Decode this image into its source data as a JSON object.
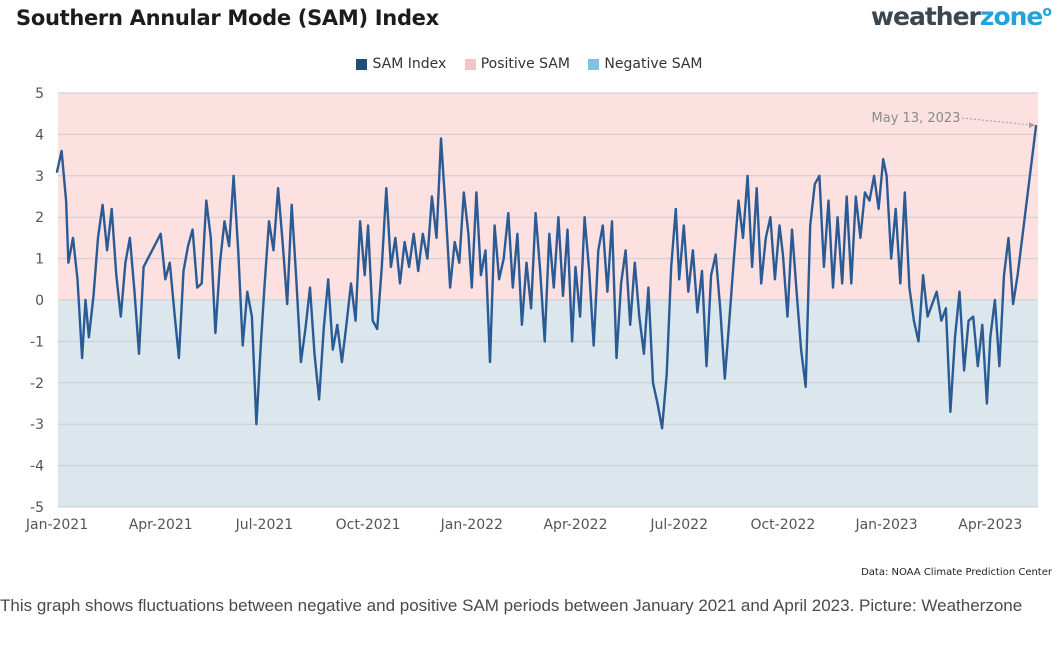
{
  "header": {
    "title": "Southern Annular Mode (SAM) Index",
    "logo_main": "weather",
    "logo_accent": "zone",
    "logo_mark": "o"
  },
  "legend": [
    {
      "label": "SAM Index",
      "color": "#1f4e79"
    },
    {
      "label": "Positive SAM",
      "color": "#f4c4c4"
    },
    {
      "label": "Negative SAM",
      "color": "#7ec3e0"
    }
  ],
  "source": "Data: NOAA Climate Prediction Center",
  "caption": "This graph shows fluctuations between negative and positive SAM periods between January 2021 and April 2023. Picture: Weatherzone",
  "chart_data": {
    "type": "line",
    "title": "Southern Annular Mode (SAM) Index",
    "xlabel": "",
    "ylabel": "",
    "ylim": [
      -5,
      5
    ],
    "y_ticks": [
      "5",
      "4",
      "3",
      "2",
      "1",
      "0",
      "-1",
      "-2",
      "-3",
      "-4",
      "-5"
    ],
    "x_tick_labels": [
      "Jan-2021",
      "Apr-2021",
      "Jul-2021",
      "Oct-2021",
      "Jan-2022",
      "Apr-2022",
      "Jul-2022",
      "Oct-2022",
      "Jan-2023",
      "Apr-2023"
    ],
    "x_range": [
      "Jan-2021",
      "May 13, 2023"
    ],
    "grid": true,
    "legend_position": "top-center",
    "positive_band_color": "#fde0e0",
    "negative_band_color": "#dce6ed",
    "annotation": {
      "text": "May 13, 2023",
      "value": 4.2
    },
    "series": [
      {
        "name": "SAM Index",
        "color": "#2a5b94",
        "points": [
          [
            "Jan-2021",
            3.1
          ],
          [
            "Jan-2021+4",
            3.6
          ],
          [
            "Jan-2021+8",
            2.4
          ],
          [
            "Jan-2021+10",
            0.9
          ],
          [
            "Jan-2021+14",
            1.5
          ],
          [
            "Jan-2021+18",
            0.5
          ],
          [
            "Jan-2021+22",
            -1.4
          ],
          [
            "Jan-2021+25",
            0.0
          ],
          [
            "Jan-2021+28",
            -0.9
          ],
          [
            "Jan-2021+32",
            0.1
          ],
          [
            "Jan-2021+36",
            1.5
          ],
          [
            "Jan-2021+40",
            2.3
          ],
          [
            "Jan-2021+44",
            1.2
          ],
          [
            "Jan-2021+48",
            2.2
          ],
          [
            "Jan-2021+52",
            0.6
          ],
          [
            "Jan-2021+56",
            -0.4
          ],
          [
            "Jan-2021+60",
            0.9
          ],
          [
            "Jan-2021+64",
            1.5
          ],
          [
            "Jan-2021+68",
            0.2
          ],
          [
            "Jan-2021+72",
            -1.3
          ],
          [
            "Jan-2021+76",
            0.8
          ],
          [
            "Apr-2021",
            1.6
          ],
          [
            "Apr-2021+4",
            0.5
          ],
          [
            "Apr-2021+8",
            0.9
          ],
          [
            "Apr-2021+12",
            -0.3
          ],
          [
            "Apr-2021+16",
            -1.4
          ],
          [
            "Apr-2021+20",
            0.7
          ],
          [
            "Apr-2021+24",
            1.3
          ],
          [
            "Apr-2021+28",
            1.7
          ],
          [
            "Apr-2021+32",
            0.3
          ],
          [
            "Apr-2021+36",
            0.4
          ],
          [
            "Apr-2021+40",
            2.4
          ],
          [
            "Apr-2021+44",
            1.5
          ],
          [
            "Apr-2021+48",
            -0.8
          ],
          [
            "Apr-2021+52",
            0.9
          ],
          [
            "Apr-2021+56",
            1.9
          ],
          [
            "Apr-2021+60",
            1.3
          ],
          [
            "Apr-2021+64",
            3.0
          ],
          [
            "Apr-2021+68",
            1.2
          ],
          [
            "Apr-2021+72",
            -1.1
          ],
          [
            "Apr-2021+76",
            0.2
          ],
          [
            "Apr-2021+80",
            -0.4
          ],
          [
            "Apr-2021+84",
            -3.0
          ],
          [
            "Apr-2021+88",
            -1.0
          ],
          [
            "Jul-2021",
            0.3
          ],
          [
            "Jul-2021+4",
            1.9
          ],
          [
            "Jul-2021+8",
            1.2
          ],
          [
            "Jul-2021+12",
            2.7
          ],
          [
            "Jul-2021+16",
            1.4
          ],
          [
            "Jul-2021+20",
            -0.1
          ],
          [
            "Jul-2021+24",
            2.3
          ],
          [
            "Jul-2021+28",
            0.5
          ],
          [
            "Jul-2021+32",
            -1.5
          ],
          [
            "Jul-2021+36",
            -0.7
          ],
          [
            "Jul-2021+40",
            0.3
          ],
          [
            "Jul-2021+44",
            -1.3
          ],
          [
            "Jul-2021+48",
            -2.4
          ],
          [
            "Jul-2021+52",
            -0.7
          ],
          [
            "Jul-2021+56",
            0.5
          ],
          [
            "Jul-2021+60",
            -1.2
          ],
          [
            "Jul-2021+64",
            -0.6
          ],
          [
            "Jul-2021+68",
            -1.5
          ],
          [
            "Jul-2021+72",
            -0.6
          ],
          [
            "Jul-2021+76",
            0.4
          ],
          [
            "Jul-2021+80",
            -0.5
          ],
          [
            "Jul-2021+84",
            1.9
          ],
          [
            "Jul-2021+88",
            0.6
          ],
          [
            "Oct-2021",
            1.8
          ],
          [
            "Oct-2021+4",
            -0.5
          ],
          [
            "Oct-2021+8",
            -0.7
          ],
          [
            "Oct-2021+12",
            0.8
          ],
          [
            "Oct-2021+16",
            2.7
          ],
          [
            "Oct-2021+20",
            0.8
          ],
          [
            "Oct-2021+24",
            1.5
          ],
          [
            "Oct-2021+28",
            0.4
          ],
          [
            "Oct-2021+32",
            1.4
          ],
          [
            "Oct-2021+36",
            0.8
          ],
          [
            "Oct-2021+40",
            1.6
          ],
          [
            "Oct-2021+44",
            0.7
          ],
          [
            "Oct-2021+48",
            1.6
          ],
          [
            "Oct-2021+52",
            1.0
          ],
          [
            "Oct-2021+56",
            2.5
          ],
          [
            "Oct-2021+60",
            1.5
          ],
          [
            "Oct-2021+64",
            3.9
          ],
          [
            "Oct-2021+68",
            2.2
          ],
          [
            "Oct-2021+72",
            0.3
          ],
          [
            "Oct-2021+76",
            1.4
          ],
          [
            "Oct-2021+80",
            0.9
          ],
          [
            "Oct-2021+84",
            2.6
          ],
          [
            "Oct-2021+88",
            1.6
          ],
          [
            "Jan-2022",
            0.3
          ],
          [
            "Jan-2022+4",
            2.6
          ],
          [
            "Jan-2022+8",
            0.6
          ],
          [
            "Jan-2022+12",
            1.2
          ],
          [
            "Jan-2022+16",
            -1.5
          ],
          [
            "Jan-2022+20",
            1.8
          ],
          [
            "Jan-2022+24",
            0.5
          ],
          [
            "Jan-2022+28",
            1.0
          ],
          [
            "Jan-2022+32",
            2.1
          ],
          [
            "Jan-2022+36",
            0.3
          ],
          [
            "Jan-2022+40",
            1.6
          ],
          [
            "Jan-2022+44",
            -0.6
          ],
          [
            "Jan-2022+48",
            0.9
          ],
          [
            "Jan-2022+52",
            -0.2
          ],
          [
            "Jan-2022+56",
            2.1
          ],
          [
            "Jan-2022+60",
            0.7
          ],
          [
            "Jan-2022+64",
            -1.0
          ],
          [
            "Jan-2022+68",
            1.6
          ],
          [
            "Jan-2022+72",
            0.3
          ],
          [
            "Jan-2022+76",
            2.0
          ],
          [
            "Jan-2022+80",
            0.1
          ],
          [
            "Jan-2022+84",
            1.7
          ],
          [
            "Jan-2022+88",
            -1.0
          ],
          [
            "Apr-2022",
            0.8
          ],
          [
            "Apr-2022+4",
            -0.4
          ],
          [
            "Apr-2022+8",
            2.0
          ],
          [
            "Apr-2022+12",
            0.7
          ],
          [
            "Apr-2022+16",
            -1.1
          ],
          [
            "Apr-2022+20",
            1.2
          ],
          [
            "Apr-2022+24",
            1.8
          ],
          [
            "Apr-2022+28",
            0.2
          ],
          [
            "Apr-2022+32",
            1.9
          ],
          [
            "Apr-2022+36",
            -1.4
          ],
          [
            "Apr-2022+40",
            0.4
          ],
          [
            "Apr-2022+44",
            1.2
          ],
          [
            "Apr-2022+48",
            -0.6
          ],
          [
            "Apr-2022+52",
            0.9
          ],
          [
            "Apr-2022+56",
            -0.4
          ],
          [
            "Apr-2022+60",
            -1.3
          ],
          [
            "Apr-2022+64",
            0.3
          ],
          [
            "Apr-2022+68",
            -2.0
          ],
          [
            "Apr-2022+72",
            -2.5
          ],
          [
            "Apr-2022+76",
            -3.1
          ],
          [
            "Apr-2022+80",
            -1.8
          ],
          [
            "Apr-2022+84",
            0.8
          ],
          [
            "Apr-2022+88",
            2.2
          ],
          [
            "Jul-2022",
            0.5
          ],
          [
            "Jul-2022+4",
            1.8
          ],
          [
            "Jul-2022+8",
            0.2
          ],
          [
            "Jul-2022+12",
            1.2
          ],
          [
            "Jul-2022+16",
            -0.3
          ],
          [
            "Jul-2022+20",
            0.7
          ],
          [
            "Jul-2022+24",
            -1.6
          ],
          [
            "Jul-2022+28",
            0.6
          ],
          [
            "Jul-2022+32",
            1.1
          ],
          [
            "Jul-2022+36",
            -0.2
          ],
          [
            "Jul-2022+40",
            -1.9
          ],
          [
            "Jul-2022+44",
            -0.5
          ],
          [
            "Jul-2022+48",
            1.0
          ],
          [
            "Jul-2022+52",
            2.4
          ],
          [
            "Jul-2022+56",
            1.5
          ],
          [
            "Jul-2022+60",
            3.0
          ],
          [
            "Jul-2022+64",
            0.8
          ],
          [
            "Jul-2022+68",
            2.7
          ],
          [
            "Jul-2022+72",
            0.4
          ],
          [
            "Jul-2022+76",
            1.5
          ],
          [
            "Jul-2022+80",
            2.0
          ],
          [
            "Jul-2022+84",
            0.5
          ],
          [
            "Jul-2022+88",
            1.8
          ],
          [
            "Oct-2022",
            1.1
          ],
          [
            "Oct-2022+4",
            -0.4
          ],
          [
            "Oct-2022+8",
            1.7
          ],
          [
            "Oct-2022+12",
            0.2
          ],
          [
            "Oct-2022+16",
            -1.2
          ],
          [
            "Oct-2022+20",
            -2.1
          ],
          [
            "Oct-2022+24",
            1.8
          ],
          [
            "Oct-2022+28",
            2.8
          ],
          [
            "Oct-2022+32",
            3.0
          ],
          [
            "Oct-2022+36",
            0.8
          ],
          [
            "Oct-2022+40",
            2.4
          ],
          [
            "Oct-2022+44",
            0.3
          ],
          [
            "Oct-2022+48",
            2.0
          ],
          [
            "Oct-2022+52",
            0.4
          ],
          [
            "Oct-2022+56",
            2.5
          ],
          [
            "Oct-2022+60",
            0.4
          ],
          [
            "Oct-2022+64",
            2.5
          ],
          [
            "Oct-2022+68",
            1.5
          ],
          [
            "Oct-2022+72",
            2.6
          ],
          [
            "Oct-2022+76",
            2.4
          ],
          [
            "Oct-2022+80",
            3.0
          ],
          [
            "Oct-2022+84",
            2.2
          ],
          [
            "Oct-2022+88",
            3.4
          ],
          [
            "Jan-2023",
            3.0
          ],
          [
            "Jan-2023+4",
            1.0
          ],
          [
            "Jan-2023+8",
            2.2
          ],
          [
            "Jan-2023+12",
            0.4
          ],
          [
            "Jan-2023+16",
            2.6
          ],
          [
            "Jan-2023+20",
            0.3
          ],
          [
            "Jan-2023+24",
            -0.5
          ],
          [
            "Jan-2023+28",
            -1.0
          ],
          [
            "Jan-2023+32",
            0.6
          ],
          [
            "Jan-2023+36",
            -0.4
          ],
          [
            "Jan-2023+40",
            -0.1
          ],
          [
            "Jan-2023+44",
            0.2
          ],
          [
            "Jan-2023+48",
            -0.5
          ],
          [
            "Jan-2023+52",
            -0.2
          ],
          [
            "Jan-2023+56",
            -2.7
          ],
          [
            "Jan-2023+60",
            -0.9
          ],
          [
            "Jan-2023+64",
            0.2
          ],
          [
            "Jan-2023+68",
            -1.7
          ],
          [
            "Jan-2023+72",
            -0.5
          ],
          [
            "Jan-2023+76",
            -0.4
          ],
          [
            "Jan-2023+80",
            -1.6
          ],
          [
            "Jan-2023+84",
            -0.6
          ],
          [
            "Jan-2023+88",
            -2.5
          ],
          [
            "Apr-2023",
            -0.9
          ],
          [
            "Apr-2023+4",
            0.0
          ],
          [
            "Apr-2023+8",
            -1.6
          ],
          [
            "Apr-2023+12",
            0.6
          ],
          [
            "Apr-2023+16",
            1.5
          ],
          [
            "Apr-2023+20",
            -0.1
          ],
          [
            "Apr-2023+24",
            0.6
          ],
          [
            "May 13, 2023",
            4.2
          ]
        ]
      }
    ]
  }
}
